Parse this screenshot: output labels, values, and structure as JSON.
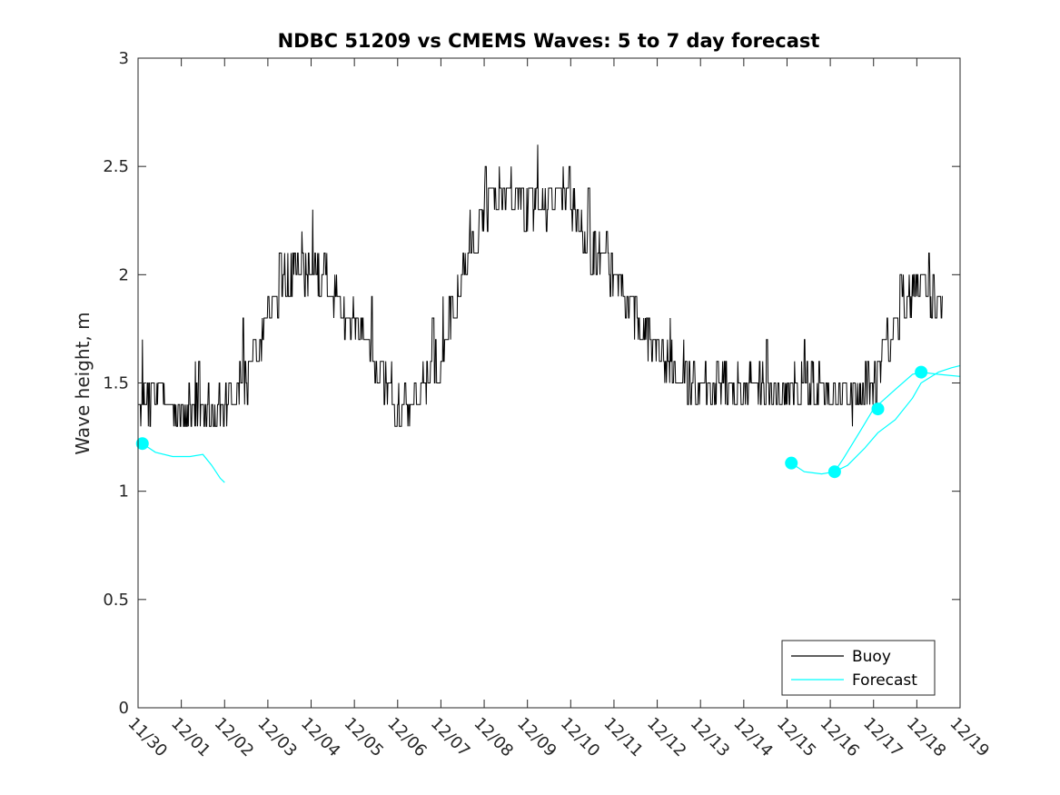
{
  "chart_data": {
    "type": "line",
    "title": "NDBC 51209 vs CMEMS Waves: 5 to 7 day forecast",
    "xlabel": "",
    "ylabel": "Wave height, m",
    "xlim": [
      0,
      19
    ],
    "ylim": [
      0,
      3
    ],
    "x_tick_values": [
      0,
      1,
      2,
      3,
      4,
      5,
      6,
      7,
      8,
      9,
      10,
      11,
      12,
      13,
      14,
      15,
      16,
      17,
      18,
      19
    ],
    "x_tick_labels": [
      "11/30",
      "12/01",
      "12/02",
      "12/03",
      "12/04",
      "12/05",
      "12/06",
      "12/07",
      "12/08",
      "12/09",
      "12/10",
      "12/11",
      "12/12",
      "12/13",
      "12/14",
      "12/15",
      "12/16",
      "12/17",
      "12/18",
      "12/19"
    ],
    "y_tick_values": [
      0,
      0.5,
      1,
      1.5,
      2,
      2.5,
      3
    ],
    "y_tick_labels": [
      "0",
      "0.5",
      "1",
      "1.5",
      "2",
      "2.5",
      "3"
    ],
    "grid": false,
    "legend": {
      "placement": "bottom-right",
      "entries": [
        "Buoy",
        "Forecast"
      ]
    },
    "colors": {
      "buoy": "#000000",
      "forecast": "#00ffff",
      "axes": "#262626"
    },
    "series": [
      {
        "name": "Buoy",
        "x": [
          0,
          0.5,
          1.0,
          1.5,
          2.0,
          2.5,
          3.0,
          3.5,
          4.0,
          4.5,
          5.0,
          5.5,
          6.0,
          6.5,
          7.0,
          7.5,
          8.0,
          8.5,
          9.0,
          9.5,
          10.0,
          10.5,
          11.0,
          11.5,
          12.0,
          12.5,
          13.0,
          13.5,
          14.0,
          14.5,
          15.0,
          15.5,
          16.0,
          16.5,
          17.0,
          17.5,
          18.0,
          18.5
        ],
        "y": [
          1.4,
          1.45,
          1.35,
          1.35,
          1.4,
          1.5,
          1.8,
          2.0,
          2.05,
          1.95,
          1.75,
          1.55,
          1.38,
          1.42,
          1.65,
          2.0,
          2.3,
          2.4,
          2.32,
          2.35,
          2.35,
          2.1,
          2.0,
          1.8,
          1.65,
          1.55,
          1.45,
          1.5,
          1.48,
          1.5,
          1.45,
          1.5,
          1.45,
          1.42,
          1.52,
          1.8,
          1.95,
          1.9
        ],
        "noise": 0.1
      },
      {
        "name": "Forecast",
        "segments": [
          {
            "x": [
              0.1,
              0.4,
              0.8,
              1.2,
              1.5,
              1.7,
              1.9,
              2.0
            ],
            "y": [
              1.22,
              1.18,
              1.16,
              1.16,
              1.17,
              1.12,
              1.06,
              1.04
            ]
          },
          {
            "x": [
              15.1,
              15.4,
              15.8,
              16.1,
              16.3,
              16.7,
              17.0,
              17.5,
              17.9,
              18.1,
              18.5,
              19.0
            ],
            "y": [
              1.13,
              1.09,
              1.08,
              1.09,
              1.15,
              1.28,
              1.38,
              1.47,
              1.54,
              1.55,
              1.54,
              1.53
            ]
          },
          {
            "x": [
              16.1,
              16.4,
              16.8,
              17.1,
              17.5,
              17.9,
              18.1,
              18.5,
              18.8,
              19.0
            ],
            "y": [
              1.09,
              1.12,
              1.2,
              1.27,
              1.33,
              1.43,
              1.5,
              1.55,
              1.57,
              1.58
            ]
          }
        ],
        "markers": {
          "x": [
            0.1,
            15.1,
            16.1,
            17.1,
            18.1
          ],
          "y": [
            1.22,
            1.13,
            1.09,
            1.38,
            1.55
          ]
        }
      }
    ]
  }
}
